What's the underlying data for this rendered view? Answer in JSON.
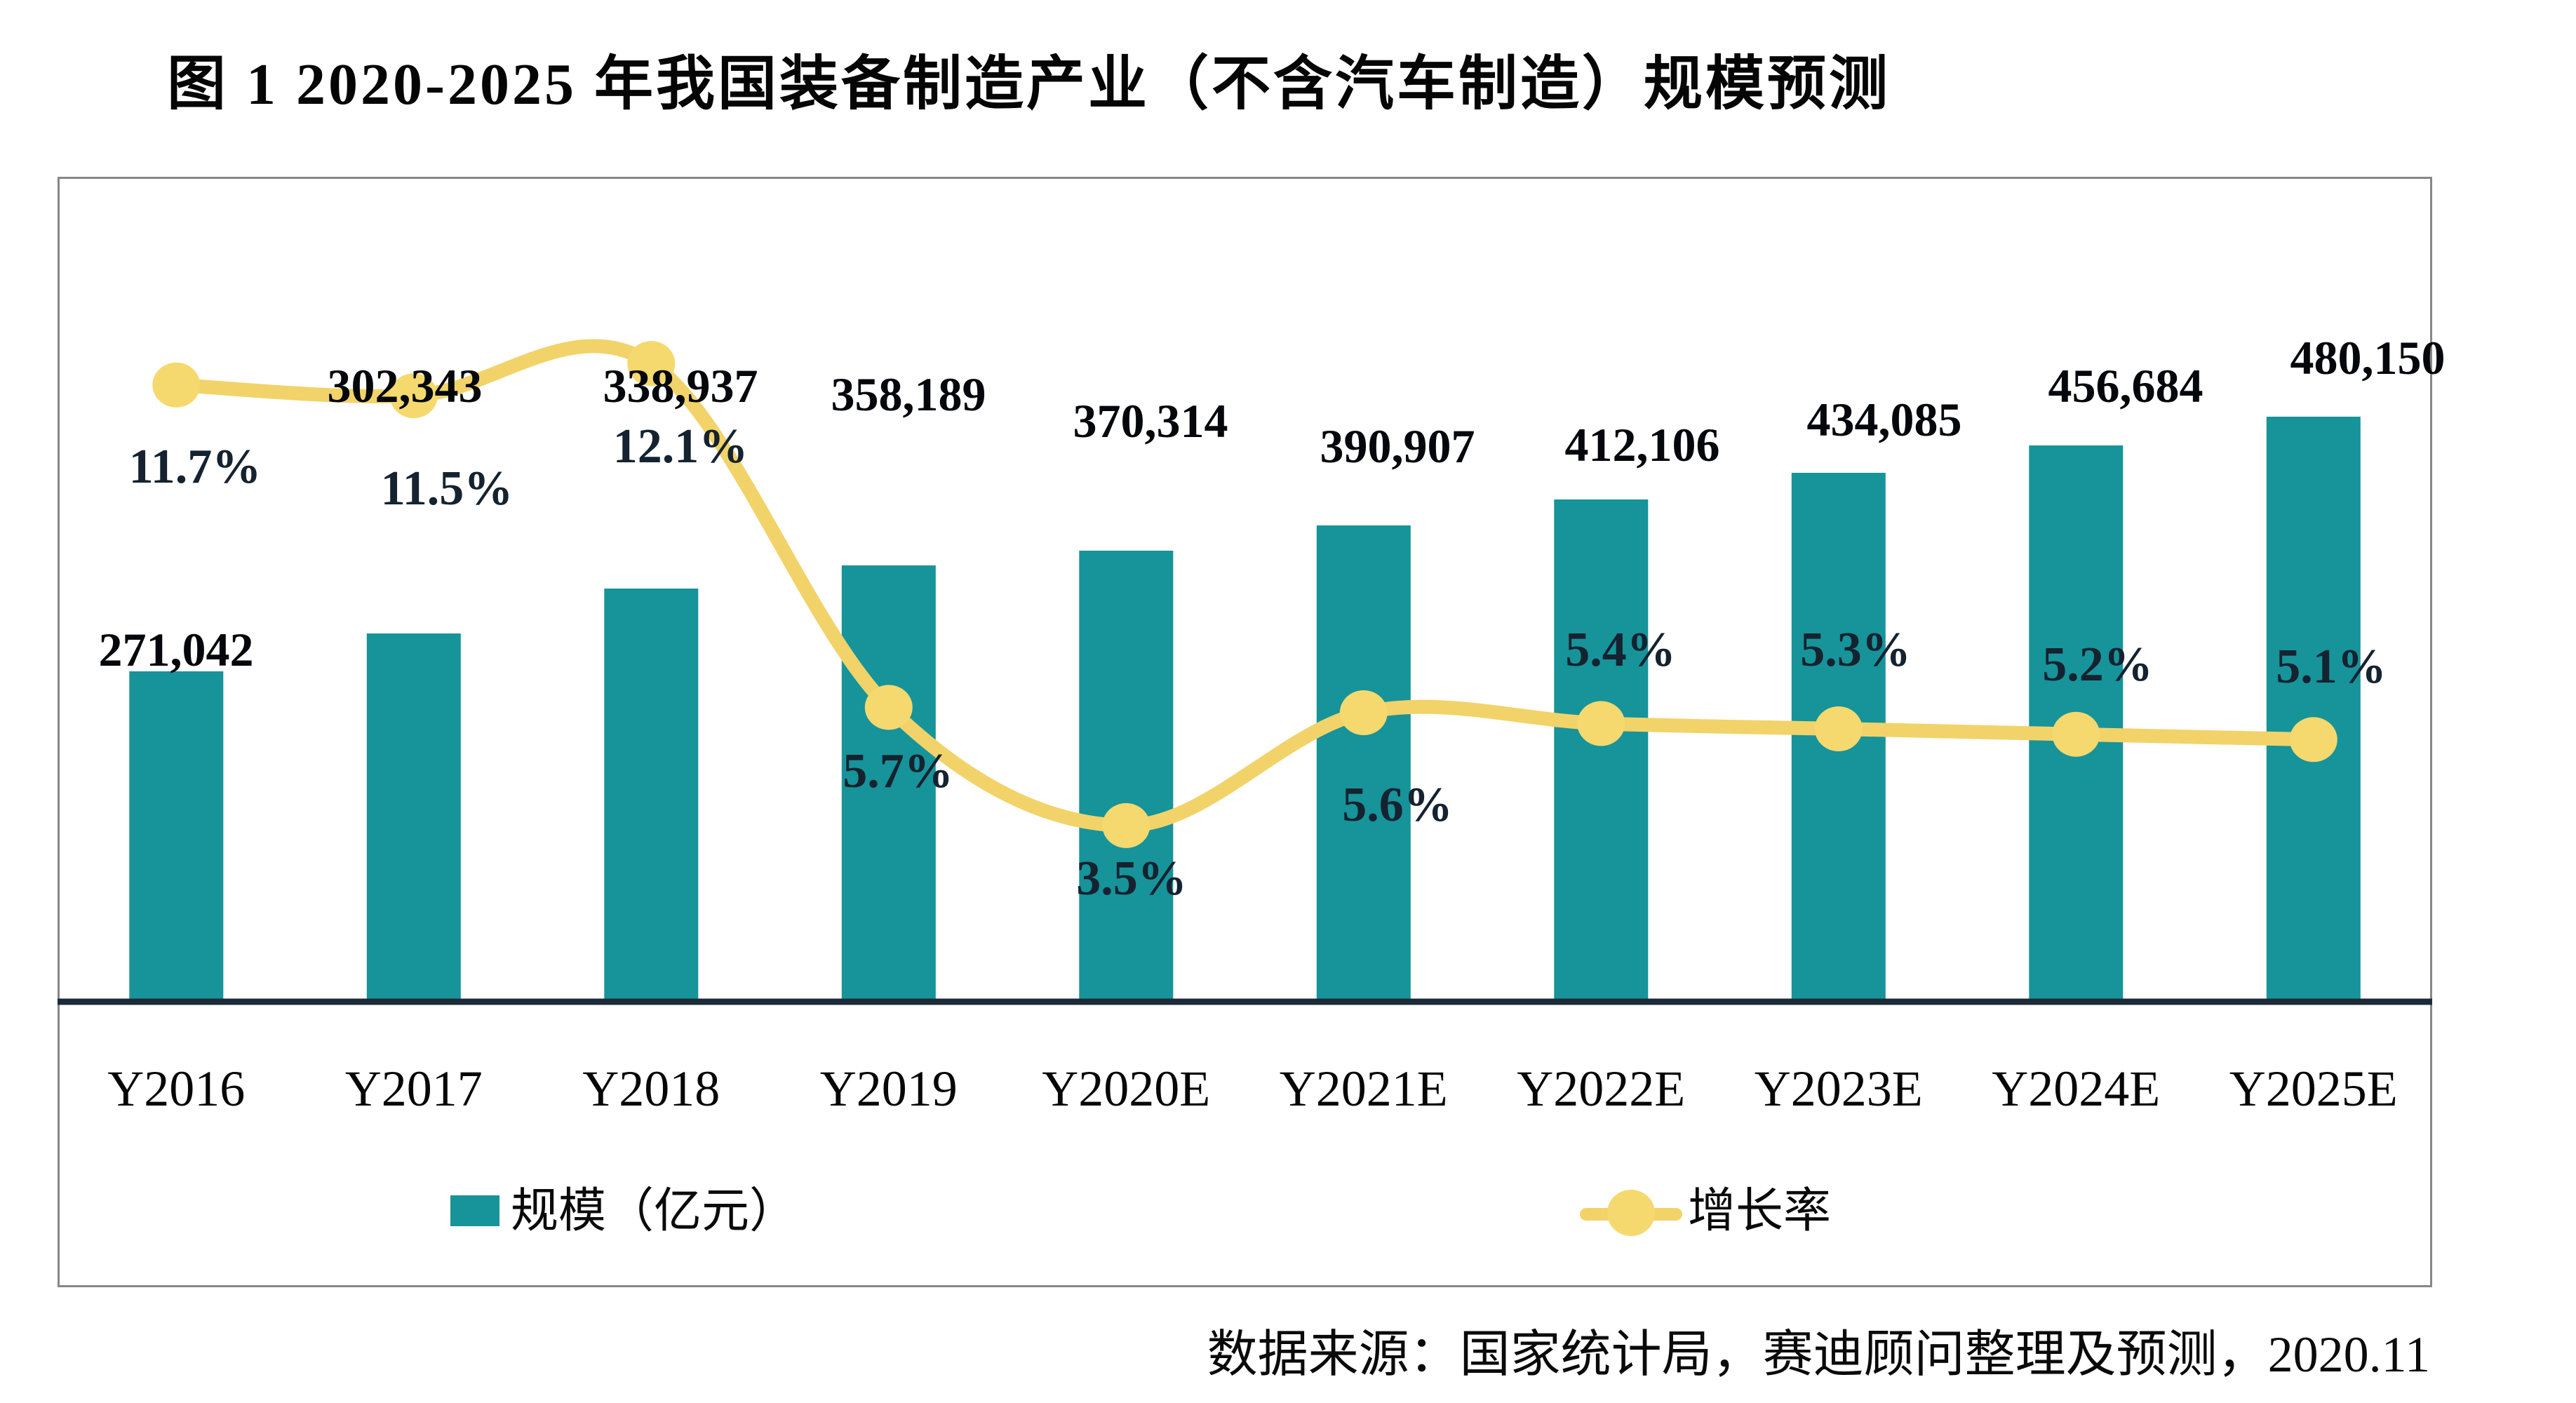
{
  "page": {
    "title": "图 1  2020-2025 年我国装备制造产业（不含汽车制造）规模预测",
    "source_note": "数据来源：国家统计局，赛迪顾问整理及预测，2020.11"
  },
  "legend": {
    "scale_label": "规模（亿元）",
    "growth_label": "增长率"
  },
  "colors": {
    "bar": "#17939a",
    "line": "#f2d369",
    "marker": "#f5d96e",
    "axis_line": "#1c2a38",
    "box_border": "#878787",
    "background": "#ffffff"
  },
  "chart_data": {
    "type": "bar+line combo",
    "title": "图 1  2020-2025 年我国装备制造产业（不含汽车制造）规模预测",
    "categories": [
      "Y2016",
      "Y2017",
      "Y2018",
      "Y2019",
      "Y2020E",
      "Y2021E",
      "Y2022E",
      "Y2023E",
      "Y2024E",
      "Y2025E"
    ],
    "series": [
      {
        "name": "规模（亿元）",
        "type": "bar",
        "axis": "left",
        "values": [
          271042,
          302343,
          338937,
          358189,
          370314,
          390907,
          412106,
          434085,
          456684,
          480150
        ],
        "labels": [
          "271,042",
          "302,343",
          "338,937",
          "358,189",
          "370,314",
          "390,907",
          "412,106",
          "434,085",
          "456,684",
          "480,150"
        ]
      },
      {
        "name": "增长率",
        "type": "line",
        "axis": "right",
        "values_pct": [
          11.7,
          11.5,
          12.1,
          5.7,
          3.5,
          5.6,
          5.4,
          5.3,
          5.2,
          5.1
        ],
        "labels": [
          "11.7%",
          "11.5%",
          "12.1%",
          "5.7%",
          "3.5%",
          "5.6%",
          "5.4%",
          "5.3%",
          "5.2%",
          "5.1%"
        ]
      }
    ],
    "left_axis": {
      "min": 0,
      "unit": "亿元",
      "tick_labels_visible": false,
      "gridlines": false
    },
    "right_axis": {
      "min": 0,
      "unit": "%",
      "tick_labels_visible": false
    },
    "legend_position": "bottom-inside",
    "data_labels": "visible",
    "line_smoothing": true
  }
}
